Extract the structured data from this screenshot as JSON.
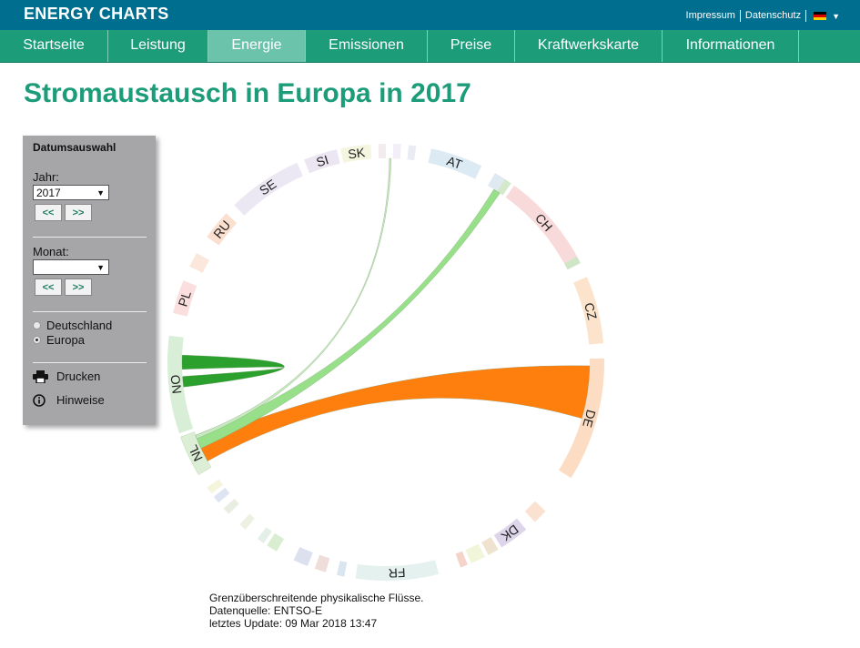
{
  "header": {
    "brand": "ENERGY CHARTS",
    "links": [
      "Impressum",
      "Datenschutz"
    ]
  },
  "nav": {
    "tabs": [
      "Startseite",
      "Leistung",
      "Energie",
      "Emissionen",
      "Preise",
      "Kraftwerkskarte",
      "Informationen"
    ],
    "active": "Energie"
  },
  "page": {
    "title": "Stromaustausch in Europa in 2017"
  },
  "panel": {
    "title": "Datumsauswahl",
    "year_label": "Jahr:",
    "year_value": "2017",
    "month_label": "Monat:",
    "month_value": "",
    "prev_label": "<<",
    "next_label": ">>",
    "radio_de": "Deutschland",
    "radio_eu": "Europa",
    "radio_selected": "Europa",
    "print_label": "Drucken",
    "info_label": "Hinweise"
  },
  "footnote": {
    "line1": "Grenzüberschreitende physikalische Flüsse.",
    "line2": "Datenquelle: ENTSO-E",
    "line3": "letztes Update: 09 Mar 2018 13:47"
  },
  "chart_data": {
    "type": "chord",
    "title": "",
    "highlighted_country": "NL",
    "countries": [
      "AT",
      "CH",
      "CZ",
      "DE",
      "DK",
      "FR",
      "NL",
      "NO",
      "PL",
      "RU",
      "SE",
      "SI",
      "SK"
    ],
    "flows": [
      {
        "from": "NL",
        "to": "DE",
        "color": "#ff7f0e"
      },
      {
        "from": "NL",
        "to": "NO",
        "color": "#2ca02c"
      },
      {
        "from": "NL",
        "to": "AT",
        "color": "#98df8a"
      },
      {
        "from": "NL",
        "to": "SK",
        "color": "#c7e9c0"
      }
    ]
  }
}
